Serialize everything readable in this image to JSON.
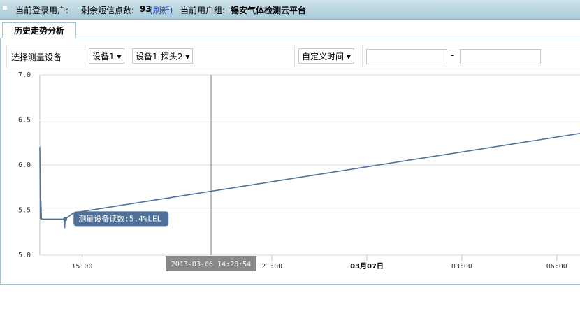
{
  "header": {
    "user_label": "当前登录用户:",
    "sms_label": "剩余短信点数:",
    "sms_count": "93",
    "refresh": "(刷新)",
    "group_label": "当前用户组:",
    "group_name": "锡安气体检测云平台"
  },
  "tabs": [
    "历史走势分析"
  ],
  "filters": {
    "label": "选择测量设备",
    "device": "设备1",
    "probe": "设备1-探头2",
    "time_mode": "自定义时间",
    "dash": "-"
  },
  "chart_data": {
    "type": "line",
    "color": "#4f7199",
    "x": [
      "2013-03-06 13:40",
      "2013-03-06 13:41",
      "2013-03-06 13:42",
      "2013-03-06 13:43",
      "2013-03-06 14:26",
      "2013-03-06 14:27",
      "2013-03-06 14:28",
      "2013-03-06 14:44",
      "2013-03-07 06:44"
    ],
    "values": [
      6.2,
      5.4,
      5.6,
      5.4,
      5.4,
      5.3,
      5.4,
      5.47,
      6.35
    ],
    "xlim": [
      "2013-03-06 13:40",
      "2013-03-07 06:44"
    ],
    "xticks": [
      {
        "value": "2013-03-06 15:00",
        "label": "15:00"
      },
      {
        "value": "2013-03-06 21:00",
        "label": "21:00"
      },
      {
        "value": "2013-03-07 00:00",
        "label": "03月07日"
      },
      {
        "value": "2013-03-07 03:00",
        "label": "03:00"
      },
      {
        "value": "2013-03-07 06:00",
        "label": "06:00"
      }
    ],
    "ylim": [
      5,
      7
    ],
    "yticks": [
      {
        "value": 5,
        "label": "5.0"
      },
      {
        "value": 5.5,
        "label": "5.5"
      },
      {
        "value": 6,
        "label": "6.0"
      },
      {
        "value": 6.5,
        "label": "6.5"
      },
      {
        "value": 7,
        "label": "7.0"
      }
    ],
    "grid": true,
    "tooltip": "测量设备读数:5.4%LEL",
    "crosshair_label": "2013-03-06 14:28:54"
  }
}
